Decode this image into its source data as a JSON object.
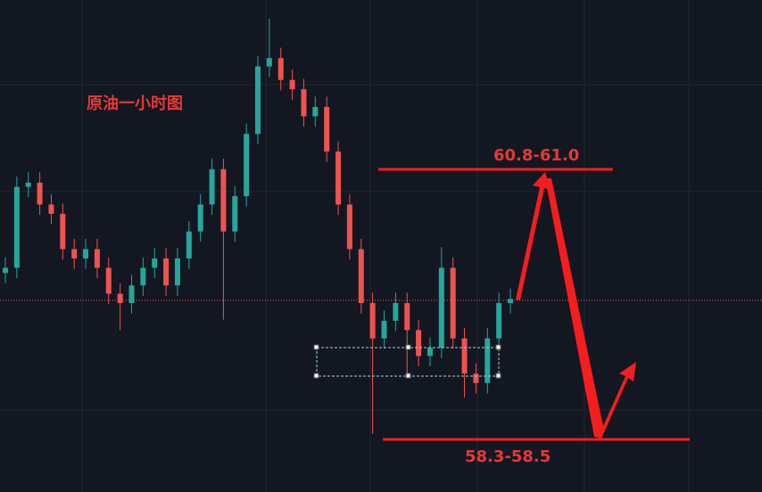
{
  "chart_data": {
    "type": "candlestick",
    "title": "原油一小时图",
    "annotations": [
      "60.8-61.0",
      "58.3-58.5"
    ],
    "ylim": [
      57.89,
      62.63
    ],
    "up_color": "#26a69a",
    "down_color": "#ef5350",
    "open": [
      60.0,
      60.05,
      60.83,
      60.87,
      60.66,
      60.57,
      60.23,
      60.14,
      60.23,
      60.05,
      59.8,
      59.71,
      59.88,
      60.05,
      60.14,
      59.88,
      60.14,
      60.4,
      60.66,
      61.0,
      60.4,
      60.74,
      61.34,
      61.99,
      62.07,
      61.86,
      61.77,
      61.51,
      61.6,
      61.17,
      60.66,
      60.23,
      59.71,
      59.37,
      59.54,
      59.71,
      59.45,
      59.2,
      59.28,
      60.05,
      59.37,
      59.03,
      58.94,
      59.37,
      59.71
    ],
    "high": [
      60.15,
      60.93,
      60.97,
      60.97,
      60.76,
      60.67,
      60.33,
      60.33,
      60.33,
      60.15,
      59.9,
      59.98,
      60.15,
      60.24,
      60.24,
      60.24,
      60.5,
      60.76,
      61.1,
      61.1,
      60.84,
      61.44,
      62.09,
      62.45,
      62.17,
      61.96,
      61.87,
      61.7,
      61.7,
      61.27,
      60.76,
      60.33,
      59.81,
      59.64,
      59.81,
      59.81,
      59.55,
      59.38,
      60.25,
      60.15,
      59.47,
      59.13,
      59.47,
      59.81,
      59.85
    ],
    "low": [
      59.9,
      59.95,
      60.73,
      60.56,
      60.47,
      60.13,
      60.04,
      60.04,
      59.95,
      59.7,
      59.45,
      59.61,
      59.78,
      59.95,
      59.78,
      59.78,
      60.04,
      60.3,
      60.56,
      59.55,
      60.3,
      60.64,
      61.24,
      61.89,
      61.76,
      61.67,
      61.41,
      61.41,
      61.07,
      60.56,
      60.13,
      59.61,
      58.45,
      59.27,
      59.44,
      59.0,
      59.1,
      59.1,
      59.18,
      59.27,
      58.8,
      58.84,
      58.84,
      59.27,
      59.61
    ],
    "close": [
      60.05,
      60.83,
      60.87,
      60.66,
      60.57,
      60.23,
      60.14,
      60.23,
      60.05,
      59.8,
      59.71,
      59.88,
      60.05,
      60.14,
      59.88,
      60.14,
      60.4,
      60.66,
      61.0,
      60.4,
      60.74,
      61.34,
      61.99,
      62.07,
      61.86,
      61.77,
      61.51,
      61.6,
      61.17,
      60.66,
      60.23,
      59.71,
      59.37,
      59.54,
      59.71,
      59.45,
      59.2,
      59.28,
      60.05,
      59.37,
      59.03,
      58.94,
      59.37,
      59.71,
      59.75
    ]
  }
}
